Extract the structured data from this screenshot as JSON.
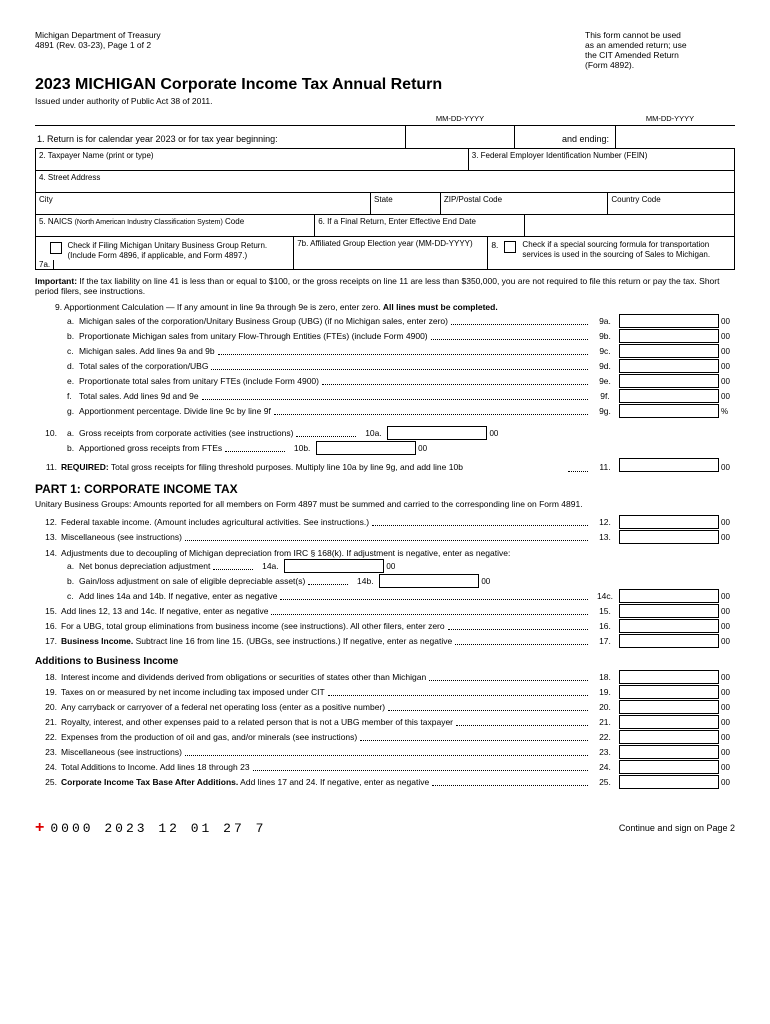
{
  "header": {
    "dept": "Michigan Department of Treasury",
    "formline": "4891 (Rev. 03-23), Page 1 of 2",
    "notice1": "This form cannot be used",
    "notice2": "as an amended return; use",
    "notice3": "the CIT Amended Return",
    "notice4": "(Form 4892)."
  },
  "title": "2023 MICHIGAN Corporate Income Tax Annual Return",
  "authority": "Issued under authority of Public Act 38 of 2011.",
  "dateLabels": {
    "mdy": "MM-DD-YYYY"
  },
  "line1": {
    "text": "1.  Return is for calendar year 2023 or for tax year beginning:",
    "andEnding": "and ending:"
  },
  "boxes": {
    "l2": "2.  Taxpayer Name (print or type)",
    "l3": "3.  Federal Employer Identification Number (FEIN)",
    "l4": "4.  Street Address",
    "city": "City",
    "state": "State",
    "zip": "ZIP/Postal Code",
    "country": "Country Code",
    "l5a": "5.  NAICS ",
    "l5b": "(North American Industry Classification System)",
    "l5c": " Code",
    "l6": "6. If a Final Return, Enter Effective End Date",
    "l7check": "Check if Filing Michigan Unitary Business Group Return. (Include Form 4896, if applicable, and Form 4897.)",
    "l7a": "7a.",
    "l7b": "7b. Affiliated Group Election year (MM-DD-YYYY)",
    "l8num": "8.",
    "l8text": "Check if a special sourcing formula for transportation services is used in the sourcing of Sales to Michigan."
  },
  "important": {
    "label": "Important:",
    "text": " If the tax liability on line 41 is less than or equal to $100, or the gross receipts on line 11 are less than $350,000, you are not required to file this return or pay the tax. Short period filers, see instructions."
  },
  "line9hdr": {
    "a": "9.  Apportionment Calculation — If any amount in line 9a through 9e is zero, enter zero. ",
    "b": "All lines must be completed."
  },
  "lines9": [
    {
      "letter": "a.",
      "text": "Michigan sales of the corporation/Unitary Business Group (UBG) (if no Michigan sales, enter zero)",
      "num": "9a.",
      "suffix": "00"
    },
    {
      "letter": "b.",
      "text": "Proportionate Michigan sales from unitary Flow-Through Entities (FTEs) (include Form 4900)",
      "num": "9b.",
      "suffix": "00"
    },
    {
      "letter": "c.",
      "text": "Michigan sales. Add lines 9a and 9b",
      "num": "9c.",
      "suffix": "00"
    },
    {
      "letter": "d.",
      "text": "Total sales of the corporation/UBG",
      "num": "9d.",
      "suffix": "00"
    },
    {
      "letter": "e.",
      "text": "Proportionate total sales from unitary FTEs (include Form 4900)",
      "num": "9e.",
      "suffix": "00"
    },
    {
      "letter": "f.",
      "text": "Total sales. Add lines 9d and 9e",
      "num": "9f.",
      "suffix": "00"
    },
    {
      "letter": "g.",
      "text": "Apportionment percentage. Divide line 9c by line 9f",
      "num": "9g.",
      "suffix": "%"
    }
  ],
  "lines10": [
    {
      "n": "10.",
      "letter": "a.",
      "text": "Gross receipts from corporate activities (see instructions)",
      "mid": "10a.",
      "suffix": "00"
    },
    {
      "n": "",
      "letter": "b.",
      "text": "Apportioned gross receipts from FTEs",
      "mid": "10b.",
      "suffix": "00"
    }
  ],
  "line11": {
    "n": "11.",
    "bold": "REQUIRED:",
    "text": " Total gross receipts for filing threshold purposes. Multiply line 10a by line 9g, and add line 10b",
    "num": "11.",
    "suffix": "00"
  },
  "part1": {
    "title": "PART 1: CORPORATE INCOME TAX",
    "sub": "Unitary Business Groups: Amounts reported for all members on Form 4897 must be summed and carried to the corresponding line on Form 4891."
  },
  "l12": {
    "n": "12.",
    "text": "Federal taxable income. (Amount includes agricultural activities. See instructions.)",
    "num": "12.",
    "suffix": "00"
  },
  "l13": {
    "n": "13.",
    "text": "Miscellaneous (see instructions)",
    "num": "13.",
    "suffix": "00"
  },
  "l14": {
    "n": "14.",
    "text": "Adjustments due to decoupling of Michigan depreciation from IRC § 168(k). If adjustment is negative, enter as negative:"
  },
  "l14a": {
    "letter": "a.",
    "text": "Net bonus depreciation adjustment",
    "mid": "14a.",
    "suffix": "00"
  },
  "l14b": {
    "letter": "b.",
    "text": "Gain/loss adjustment on sale of eligible depreciable asset(s)",
    "mid": "14b.",
    "suffix": "00"
  },
  "l14c": {
    "letter": "c.",
    "text": "Add lines 14a and 14b.  If negative, enter as negative",
    "num": "14c.",
    "suffix": "00"
  },
  "l15": {
    "n": "15.",
    "text": "Add lines 12, 13 and 14c. If negative, enter as negative",
    "num": "15.",
    "suffix": "00"
  },
  "l16": {
    "n": "16.",
    "text": "For a UBG, total group eliminations from business income (see instructions). All other filers, enter zero",
    "num": "16.",
    "suffix": "00"
  },
  "l17": {
    "n": "17.",
    "bold": "Business Income.",
    "text": " Subtract line 16 from line 15. (UBGs, see instructions.) If negative, enter as negative",
    "num": "17.",
    "suffix": "00"
  },
  "additionsHdr": "Additions to Business Income",
  "additions": [
    {
      "n": "18.",
      "text": "Interest income and dividends derived from obligations or securities of states other than Michigan",
      "num": "18.",
      "suffix": "00"
    },
    {
      "n": "19.",
      "text": "Taxes on or measured by net income including tax imposed under CIT",
      "num": "19.",
      "suffix": "00"
    },
    {
      "n": "20.",
      "text": "Any carryback or carryover of a federal net operating loss (enter as a positive number)",
      "num": "20.",
      "suffix": "00"
    },
    {
      "n": "21.",
      "text": "Royalty, interest, and other expenses paid to a related person that is not a UBG member of this taxpayer",
      "num": "21.",
      "suffix": "00"
    },
    {
      "n": "22.",
      "text": "Expenses from the production of oil and gas, and/or minerals (see instructions)",
      "num": "22.",
      "suffix": "00"
    },
    {
      "n": "23.",
      "text": "Miscellaneous (see instructions)",
      "num": "23.",
      "suffix": "00"
    },
    {
      "n": "24.",
      "text": "Total Additions to Income.  Add lines 18 through 23",
      "num": "24.",
      "suffix": "00"
    }
  ],
  "l25": {
    "n": "25.",
    "bold": "Corporate Income Tax Base After Additions.",
    "text": "  Add lines 17 and 24. If negative, enter as negative",
    "num": "25.",
    "suffix": "00"
  },
  "footer": {
    "scanline": "0000 2023 12 01 27 7",
    "continue": "Continue and sign on Page 2"
  }
}
